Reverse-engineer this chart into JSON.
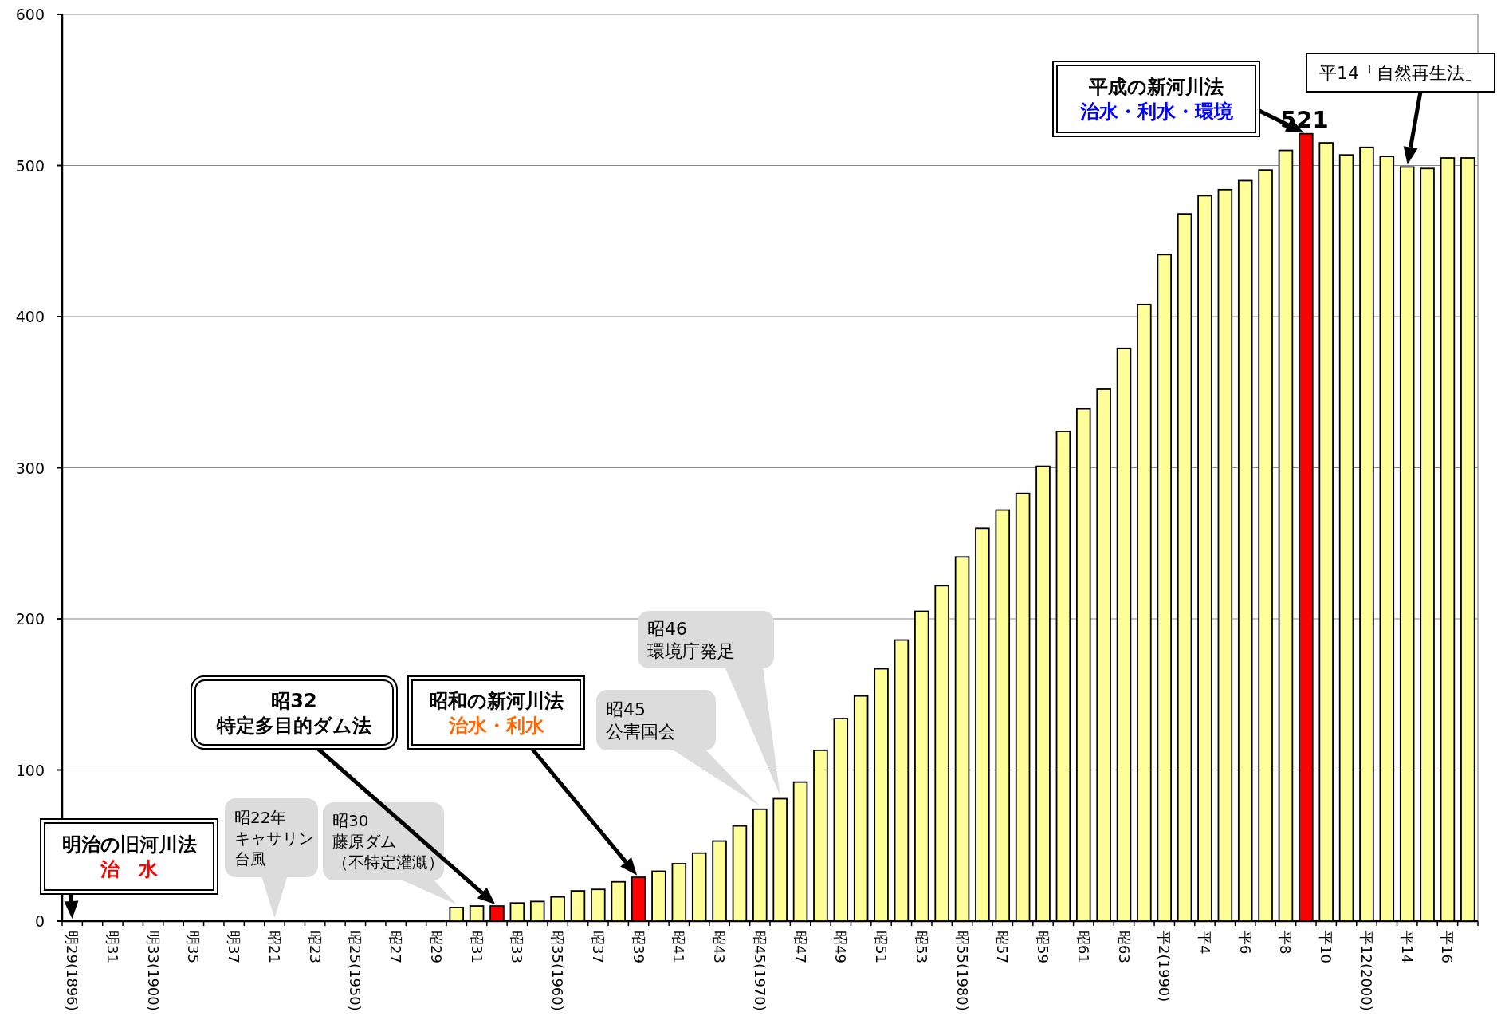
{
  "chart_data": {
    "type": "bar",
    "categories": [
      "明29(1896)",
      null,
      "明31",
      null,
      "明33(1900)",
      null,
      "明35",
      null,
      "明37",
      null,
      "昭21",
      null,
      "昭23",
      null,
      "昭25(1950)",
      null,
      "昭27",
      null,
      "昭29",
      null,
      "昭31",
      null,
      "昭33",
      null,
      "昭35(1960)",
      null,
      "昭37",
      null,
      "昭39",
      null,
      "昭41",
      null,
      "昭43",
      null,
      "昭45(1970)",
      null,
      "昭47",
      null,
      "昭49",
      null,
      "昭51",
      null,
      "昭53",
      null,
      "昭55(1980)",
      null,
      "昭57",
      null,
      "昭59",
      null,
      "昭61",
      null,
      "昭63",
      null,
      "平2(1990)",
      null,
      "平4",
      null,
      "平6",
      null,
      "平8",
      null,
      "平10",
      null,
      "平12(2000)",
      null,
      "平14",
      null,
      "平16",
      null
    ],
    "values": [
      null,
      null,
      null,
      null,
      null,
      null,
      null,
      null,
      null,
      null,
      null,
      null,
      null,
      null,
      null,
      null,
      null,
      null,
      null,
      9,
      10,
      10,
      12,
      13,
      16,
      20,
      21,
      26,
      29,
      33,
      38,
      45,
      53,
      63,
      74,
      81,
      92,
      113,
      134,
      149,
      167,
      186,
      205,
      222,
      241,
      260,
      272,
      283,
      301,
      324,
      339,
      352,
      379,
      408,
      441,
      468,
      480,
      484,
      490,
      497,
      510,
      521,
      515,
      507,
      512,
      506,
      499,
      498,
      505,
      505
    ],
    "colors": [
      null,
      null,
      null,
      null,
      null,
      null,
      null,
      null,
      null,
      null,
      null,
      null,
      null,
      null,
      null,
      null,
      null,
      null,
      null,
      "#ffff99",
      "#ffff99",
      "#ff0000",
      "#ffff99",
      "#ffff99",
      "#ffff99",
      "#ffff99",
      "#ffff99",
      "#ffff99",
      "#ff0000",
      "#ffff99",
      "#ffff99",
      "#ffff99",
      "#ffff99",
      "#ffff99",
      "#ffff99",
      "#ffff99",
      "#ffff99",
      "#ffff99",
      "#ffff99",
      "#ffff99",
      "#ffff99",
      "#ffff99",
      "#ffff99",
      "#ffff99",
      "#ffff99",
      "#ffff99",
      "#ffff99",
      "#ffff99",
      "#ffff99",
      "#ffff99",
      "#ffff99",
      "#ffff99",
      "#ffff99",
      "#ffff99",
      "#ffff99",
      "#ffff99",
      "#ffff99",
      "#ffff99",
      "#ffff99",
      "#ffff99",
      "#ffff99",
      "#ff0000",
      "#ffff99",
      "#ffff99",
      "#ffff99",
      "#ffff99",
      "#ffff99",
      "#ffff99",
      "#ffff99",
      "#ffff99"
    ],
    "value_labels": [
      null,
      null,
      null,
      null,
      null,
      null,
      null,
      null,
      null,
      null,
      null,
      null,
      null,
      null,
      null,
      null,
      null,
      null,
      null,
      null,
      null,
      null,
      null,
      null,
      null,
      null,
      null,
      null,
      null,
      null,
      null,
      null,
      null,
      null,
      null,
      null,
      null,
      null,
      null,
      null,
      null,
      null,
      null,
      null,
      null,
      null,
      null,
      null,
      null,
      null,
      null,
      null,
      null,
      null,
      null,
      null,
      null,
      null,
      null,
      null,
      null,
      "521",
      null,
      null,
      null,
      null,
      null,
      null,
      null,
      null
    ],
    "ylim": [
      0,
      600
    ],
    "yticks": [
      0,
      100,
      200,
      300,
      400,
      500,
      600
    ],
    "grid": "y",
    "annotations": [
      "明治の旧河川法治　水",
      "昭22年キャサリン台風",
      "昭30藤原ダム（不特定灌漑）",
      "昭32特定多目的ダム法",
      "昭和の新河川法治水・利水",
      "昭45公害国会",
      "昭46環境庁発足",
      "平成の新河川法治水・利水・環境",
      "平14「自然再生法」"
    ]
  }
}
